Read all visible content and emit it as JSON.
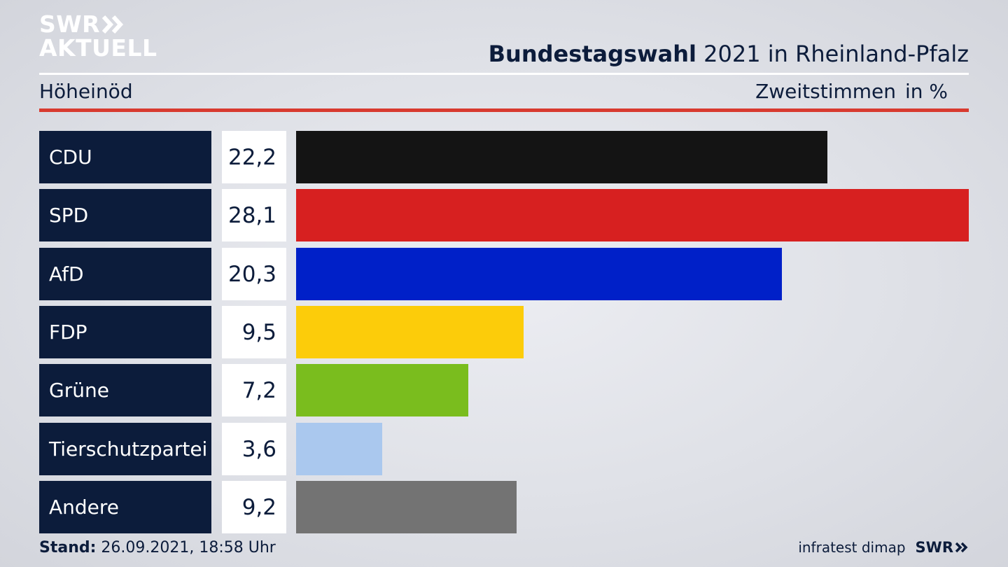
{
  "brand": {
    "line1": "SWR",
    "line2": "AKTUELL",
    "footer_logo": "SWR",
    "chevron_icon": "double-chevron-right-icon"
  },
  "header": {
    "title_bold": "Bundestagswahl",
    "title_rest": "2021 in Rheinland-Pfalz",
    "region": "Höheinöd",
    "vote_type": "Zweitstimmen",
    "unit": "in %"
  },
  "footer": {
    "stand_label": "Stand:",
    "stand_value": "26.09.2021, 18:58 Uhr",
    "source": "infratest dimap"
  },
  "colors": {
    "navy": "#0c1c3b",
    "accent_red": "#d83a2f"
  },
  "chart_data": {
    "type": "bar",
    "orientation": "horizontal",
    "categories": [
      "CDU",
      "SPD",
      "AfD",
      "FDP",
      "Grüne",
      "Tierschutzpartei",
      "Andere"
    ],
    "values": [
      22.2,
      28.1,
      20.3,
      9.5,
      7.2,
      3.6,
      9.2
    ],
    "value_labels": [
      "22,2",
      "28,1",
      "20,3",
      "9,5",
      "7,2",
      "3,6",
      "9,2"
    ],
    "colors": [
      "#141414",
      "#d72020",
      "#0020c8",
      "#fccc0a",
      "#7abd1e",
      "#aac8ee",
      "#737373"
    ],
    "xlim": [
      0,
      28.1
    ],
    "grid": false,
    "legend": "none"
  }
}
